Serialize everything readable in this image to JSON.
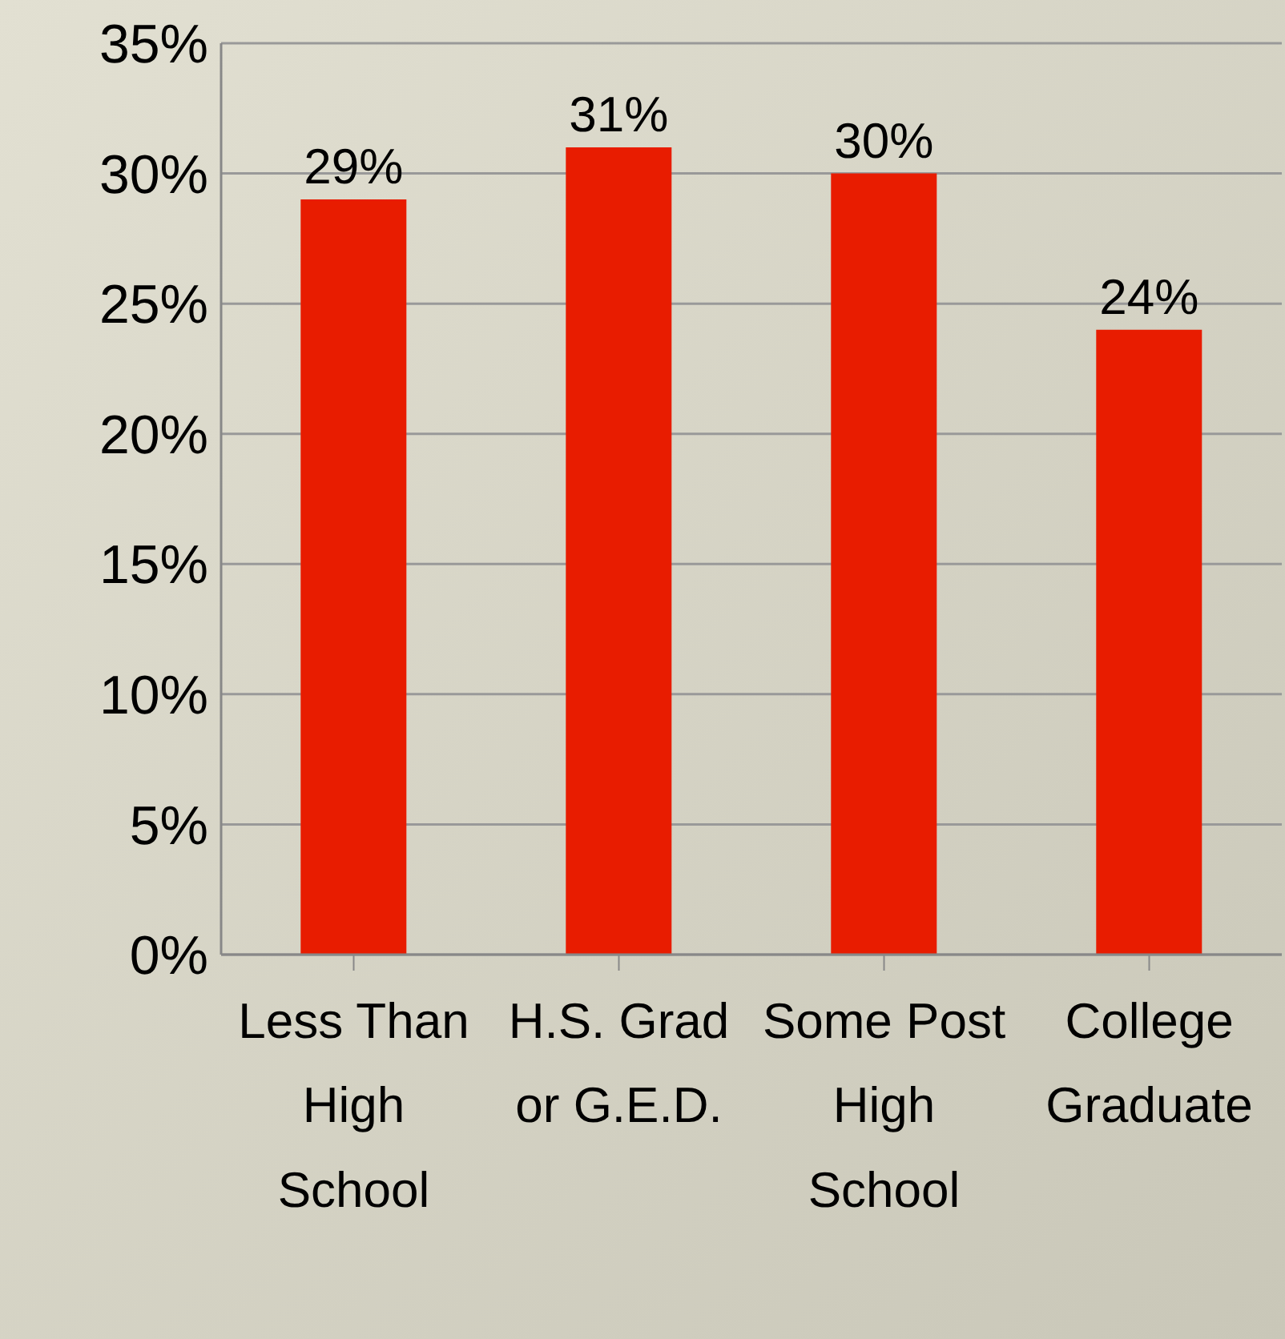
{
  "chart_data": {
    "type": "bar",
    "categories": [
      "Less Than High School",
      "H.S. Grad or G.E.D.",
      "Some Post High School",
      "College Graduate"
    ],
    "values": [
      29,
      31,
      30,
      24
    ],
    "value_labels": [
      "29%",
      "31%",
      "30%",
      "24%"
    ],
    "color": "#e81c00",
    "ylim": [
      0,
      35
    ],
    "yticks": [
      {
        "value": 0,
        "label": "0%"
      },
      {
        "value": 5,
        "label": "5%"
      },
      {
        "value": 10,
        "label": "10%"
      },
      {
        "value": 15,
        "label": "15%"
      },
      {
        "value": 20,
        "label": "20%"
      },
      {
        "value": 25,
        "label": "25%"
      },
      {
        "value": 30,
        "label": "30%"
      },
      {
        "value": 35,
        "label": "35%"
      }
    ],
    "grid": "y"
  }
}
